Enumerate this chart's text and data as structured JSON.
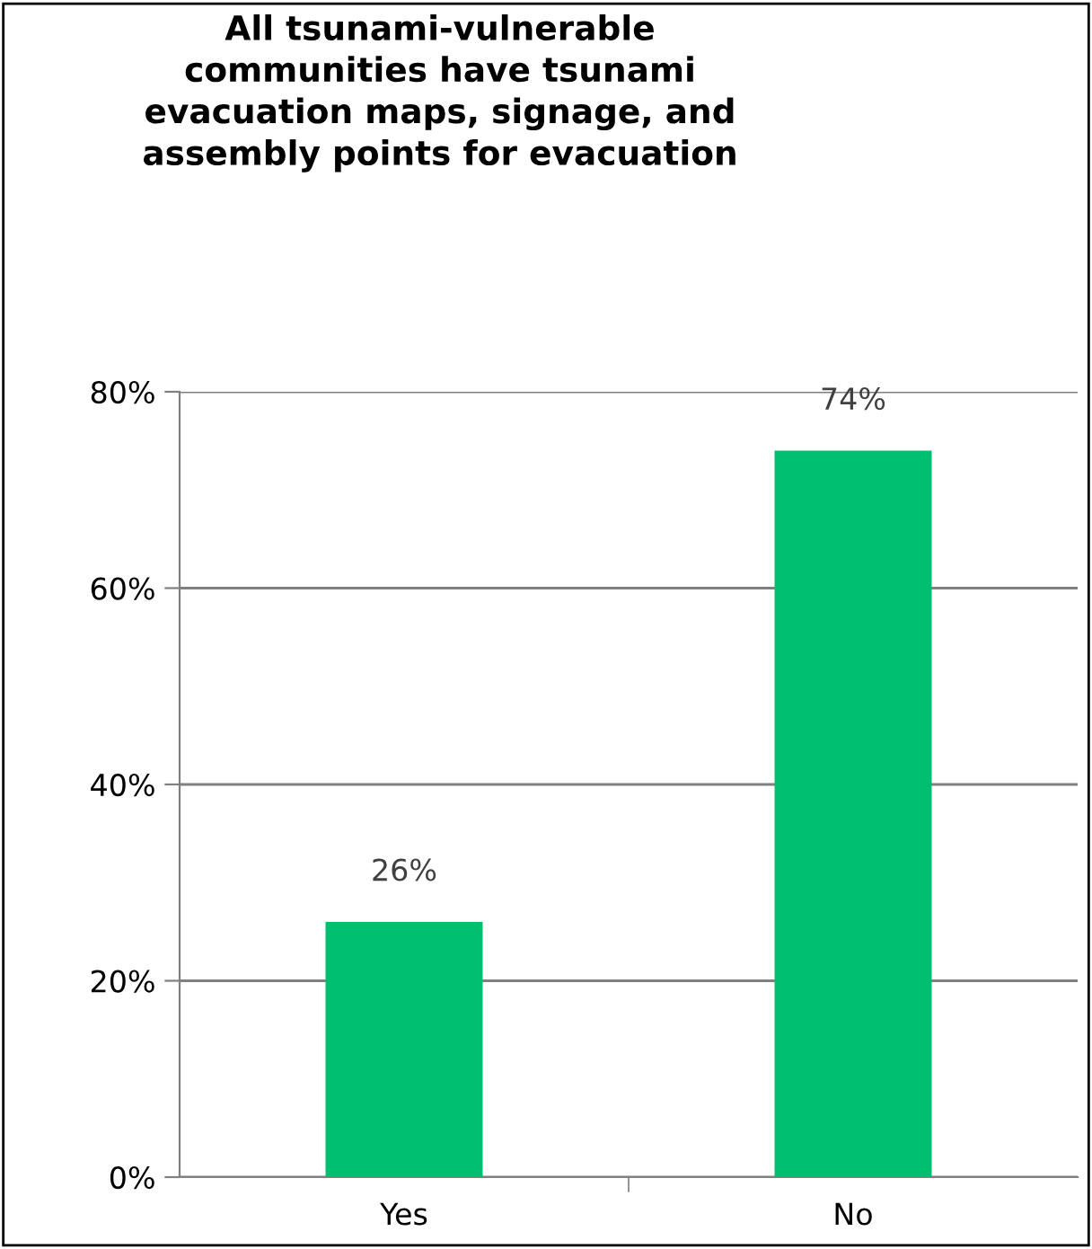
{
  "chart_data": {
    "type": "bar",
    "title": "All tsunami-vulnerable\ncommunities have tsunami\nevacuation maps, signage, and\nassembly points for evacuation",
    "categories": [
      "Yes",
      "No"
    ],
    "values": [
      26,
      74
    ],
    "color": "#00c070",
    "value_labels": [
      "26%",
      "74%"
    ],
    "ylim": [
      0,
      80
    ],
    "yticks": [
      {
        "value": 0,
        "label": "0%"
      },
      {
        "value": 20,
        "label": "20%"
      },
      {
        "value": 40,
        "label": "40%"
      },
      {
        "value": 60,
        "label": "60%"
      },
      {
        "value": 80,
        "label": "80%"
      }
    ],
    "grid": "y",
    "legend": false
  }
}
